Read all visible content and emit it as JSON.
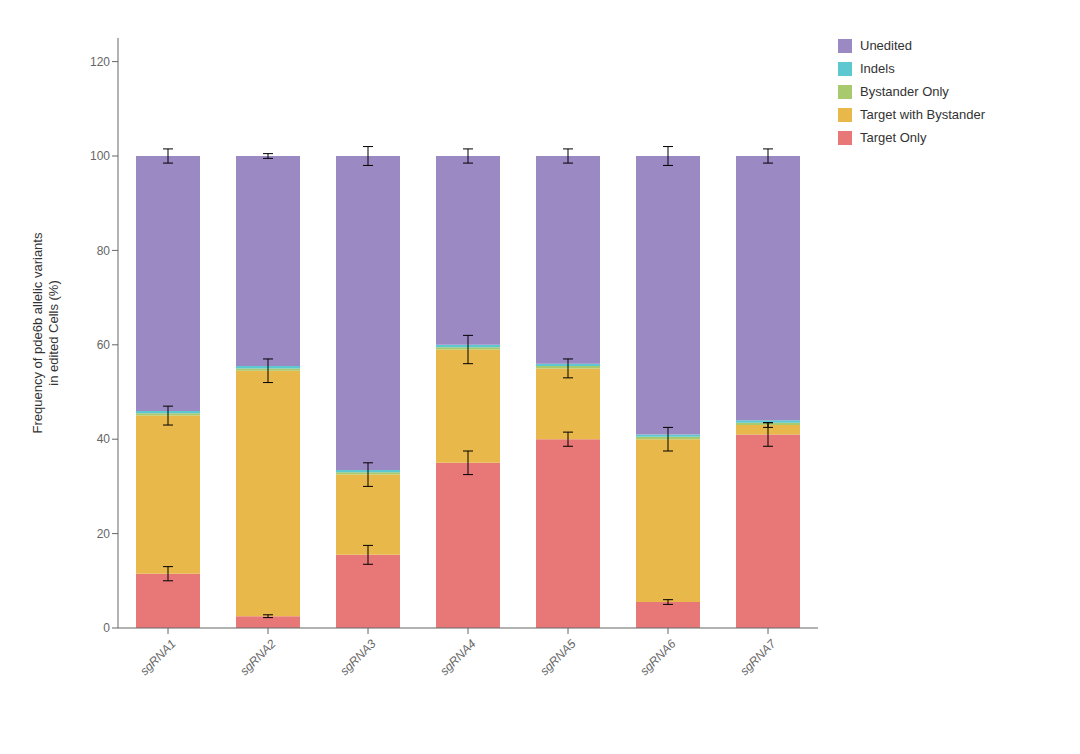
{
  "chart_data": {
    "type": "bar",
    "stacked": true,
    "grid": false,
    "legend": "upper right",
    "ylabel": "Frequency of pde6b allelic variants\nin edited Cells (%)",
    "categories": [
      "sgRNA1",
      "sgRNA2",
      "sgRNA3",
      "sgRNA4",
      "sgRNA5",
      "sgRNA6",
      "sgRNA7"
    ],
    "series": [
      {
        "name": "Target Only",
        "color": "#E87878",
        "values": [
          11.5,
          2.5,
          15.5,
          35.0,
          40.0,
          5.5,
          41.0
        ],
        "errors": [
          1.5,
          0.3,
          2.0,
          2.5,
          1.5,
          0.5,
          2.5
        ]
      },
      {
        "name": "Target with Bystander",
        "color": "#E8B84B",
        "values": [
          33.5,
          52.0,
          17.0,
          24.0,
          15.0,
          34.5,
          2.0
        ],
        "errors": [
          2.0,
          2.5,
          2.5,
          3.0,
          2.0,
          2.5,
          0.5
        ]
      },
      {
        "name": "Bystander Only",
        "color": "#A8C96E",
        "values": [
          0.5,
          0.5,
          0.5,
          0.5,
          0.5,
          0.5,
          0.5
        ]
      },
      {
        "name": "Indels",
        "color": "#5DC8D0",
        "values": [
          0.5,
          0.5,
          0.5,
          0.5,
          0.5,
          0.5,
          0.5
        ]
      },
      {
        "name": "Unedited",
        "color": "#9B89C4",
        "values": [
          54.0,
          44.5,
          66.5,
          40.0,
          44.0,
          59.0,
          56.0
        ],
        "errors": [
          1.5,
          0.5,
          2.0,
          1.5,
          1.5,
          2.0,
          1.5
        ]
      }
    ],
    "ylim": [
      0,
      125
    ],
    "yticks": [
      0,
      20,
      40,
      60,
      80,
      100,
      120
    ]
  }
}
